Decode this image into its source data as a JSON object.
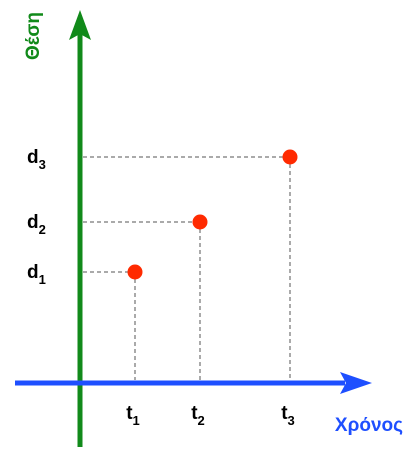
{
  "chart_data": {
    "type": "scatter",
    "title": "",
    "xlabel": "Χρόνος",
    "ylabel": "Θέση",
    "x_ticks": [
      {
        "base": "t",
        "sub": "1"
      },
      {
        "base": "t",
        "sub": "2"
      },
      {
        "base": "t",
        "sub": "3"
      }
    ],
    "y_ticks": [
      {
        "base": "d",
        "sub": "1"
      },
      {
        "base": "d",
        "sub": "2"
      },
      {
        "base": "d",
        "sub": "3"
      }
    ],
    "points": [
      {
        "x": "t1",
        "y": "d1"
      },
      {
        "x": "t2",
        "y": "d2"
      },
      {
        "x": "t3",
        "y": "d3"
      }
    ],
    "grid": false,
    "legend": "none",
    "colors": {
      "x_axis": "#1e4fff",
      "y_axis": "#118a1a",
      "points": "#ff2a00",
      "guides": "#555555"
    }
  }
}
